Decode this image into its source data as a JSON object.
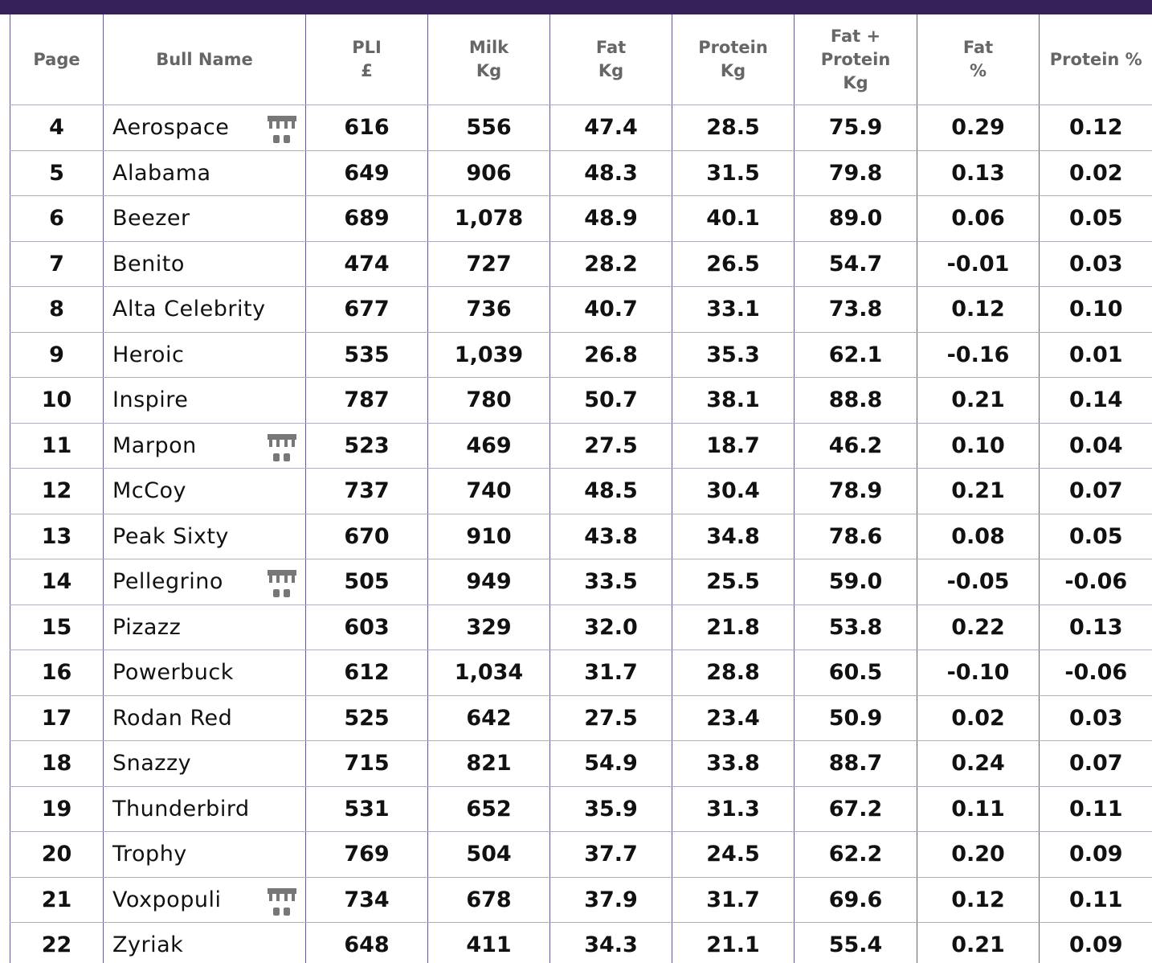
{
  "table": {
    "headers": [
      [
        "Page"
      ],
      [
        "Bull Name"
      ],
      [
        "PLI",
        "£"
      ],
      [
        "Milk",
        "Kg"
      ],
      [
        "Fat",
        "Kg"
      ],
      [
        "Protein",
        "Kg"
      ],
      [
        "Fat +",
        "Protein",
        "Kg"
      ],
      [
        "Fat",
        "%"
      ],
      [
        "Protein %"
      ]
    ],
    "rows": [
      {
        "page": 4,
        "name": "Aerospace",
        "icon": true,
        "values": [
          "616",
          "556",
          "47.4",
          "28.5",
          "75.9",
          "0.29",
          "0.12"
        ]
      },
      {
        "page": 5,
        "name": "Alabama",
        "icon": false,
        "values": [
          "649",
          "906",
          "48.3",
          "31.5",
          "79.8",
          "0.13",
          "0.02"
        ]
      },
      {
        "page": 6,
        "name": "Beezer",
        "icon": false,
        "values": [
          "689",
          "1,078",
          "48.9",
          "40.1",
          "89.0",
          "0.06",
          "0.05"
        ]
      },
      {
        "page": 7,
        "name": "Benito",
        "icon": false,
        "values": [
          "474",
          "727",
          "28.2",
          "26.5",
          "54.7",
          "-0.01",
          "0.03"
        ]
      },
      {
        "page": 8,
        "name": "Alta Celebrity",
        "icon": false,
        "values": [
          "677",
          "736",
          "40.7",
          "33.1",
          "73.8",
          "0.12",
          "0.10"
        ]
      },
      {
        "page": 9,
        "name": "Heroic",
        "icon": false,
        "values": [
          "535",
          "1,039",
          "26.8",
          "35.3",
          "62.1",
          "-0.16",
          "0.01"
        ]
      },
      {
        "page": 10,
        "name": "Inspire",
        "icon": false,
        "values": [
          "787",
          "780",
          "50.7",
          "38.1",
          "88.8",
          "0.21",
          "0.14"
        ]
      },
      {
        "page": 11,
        "name": "Marpon",
        "icon": true,
        "values": [
          "523",
          "469",
          "27.5",
          "18.7",
          "46.2",
          "0.10",
          "0.04"
        ]
      },
      {
        "page": 12,
        "name": "McCoy",
        "icon": false,
        "values": [
          "737",
          "740",
          "48.5",
          "30.4",
          "78.9",
          "0.21",
          "0.07"
        ]
      },
      {
        "page": 13,
        "name": "Peak Sixty",
        "icon": false,
        "values": [
          "670",
          "910",
          "43.8",
          "34.8",
          "78.6",
          "0.08",
          "0.05"
        ]
      },
      {
        "page": 14,
        "name": "Pellegrino",
        "icon": true,
        "values": [
          "505",
          "949",
          "33.5",
          "25.5",
          "59.0",
          "-0.05",
          "-0.06"
        ]
      },
      {
        "page": 15,
        "name": "Pizazz",
        "icon": false,
        "values": [
          "603",
          "329",
          "32.0",
          "21.8",
          "53.8",
          "0.22",
          "0.13"
        ]
      },
      {
        "page": 16,
        "name": "Powerbuck",
        "icon": false,
        "values": [
          "612",
          "1,034",
          "31.7",
          "28.8",
          "60.5",
          "-0.10",
          "-0.06"
        ]
      },
      {
        "page": 17,
        "name": "Rodan Red",
        "icon": false,
        "values": [
          "525",
          "642",
          "27.5",
          "23.4",
          "50.9",
          "0.02",
          "0.03"
        ]
      },
      {
        "page": 18,
        "name": "Snazzy",
        "icon": false,
        "values": [
          "715",
          "821",
          "54.9",
          "33.8",
          "88.7",
          "0.24",
          "0.07"
        ]
      },
      {
        "page": 19,
        "name": "Thunderbird",
        "icon": false,
        "values": [
          "531",
          "652",
          "35.9",
          "31.3",
          "67.2",
          "0.11",
          "0.11"
        ]
      },
      {
        "page": 20,
        "name": "Trophy",
        "icon": false,
        "values": [
          "769",
          "504",
          "37.7",
          "24.5",
          "62.2",
          "0.20",
          "0.09"
        ]
      },
      {
        "page": 21,
        "name": "Voxpopuli",
        "icon": true,
        "values": [
          "734",
          "678",
          "37.9",
          "31.7",
          "69.6",
          "0.12",
          "0.11"
        ]
      },
      {
        "page": 22,
        "name": "Zyriak",
        "icon": false,
        "values": [
          "648",
          "411",
          "34.3",
          "21.1",
          "55.4",
          "0.21",
          "0.09"
        ]
      }
    ]
  }
}
